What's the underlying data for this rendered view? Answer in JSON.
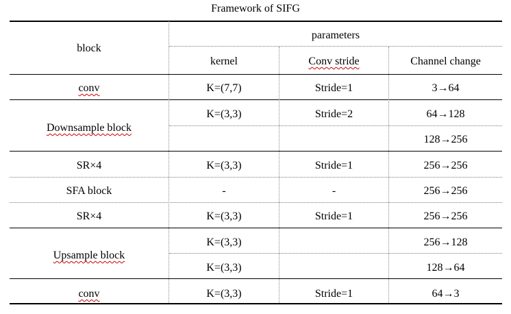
{
  "caption": "Framework of SIFG",
  "header": {
    "block": "block",
    "parameters": "parameters",
    "kernel": "kernel",
    "conv_stride": "Conv stride",
    "channel_change": "Channel change"
  },
  "rows": [
    {
      "block": "conv",
      "kernel": "K=(7,7)",
      "stride": "Stride=1",
      "channel": "3→64"
    },
    {
      "block": "Downsample block",
      "kernel": "K=(3,3)",
      "stride": "Stride=2",
      "channel": "64→128"
    },
    {
      "channel": "128→256"
    },
    {
      "block": "SR×4",
      "kernel": "K=(3,3)",
      "stride": "Stride=1",
      "channel": "256→256"
    },
    {
      "block": "SFA block",
      "kernel": "-",
      "stride": "-",
      "channel": "256→256"
    },
    {
      "block": "SR×4",
      "kernel": "K=(3,3)",
      "stride": "Stride=1",
      "channel": "256→256"
    },
    {
      "block": "Upsample block",
      "kernel": "K=(3,3)",
      "channel": "256→128"
    },
    {
      "kernel": "K=(3,3)",
      "channel": "128→64"
    },
    {
      "block": "conv",
      "kernel": "K=(3,3)",
      "stride": "Stride=1",
      "channel": "64→3"
    }
  ]
}
